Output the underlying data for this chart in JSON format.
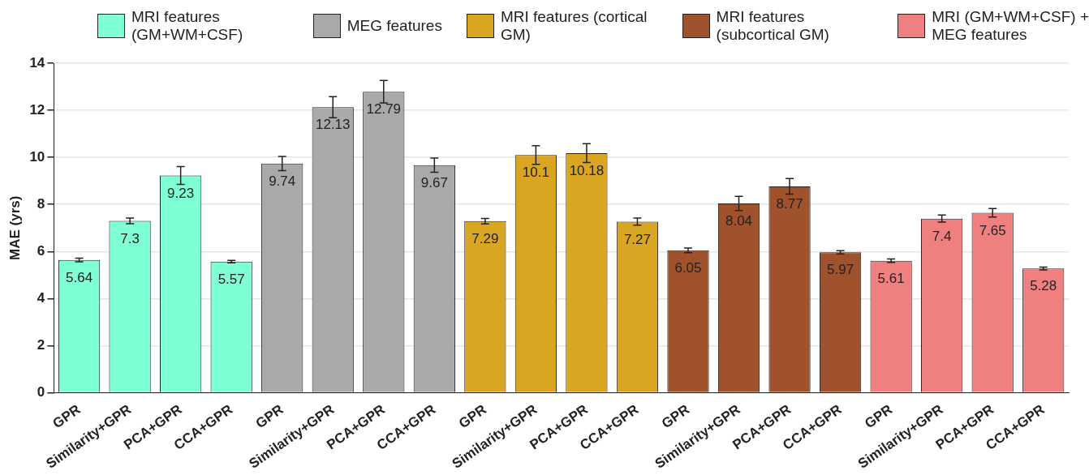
{
  "chart_data": {
    "type": "bar",
    "ylabel": "MAE (yrs)",
    "categories": [
      "GPR",
      "Similarity+GPR",
      "PCA+GPR",
      "CCA+GPR",
      "GPR",
      "Similarity+GPR",
      "PCA+GPR",
      "CCA+GPR",
      "GPR",
      "Similarity+GPR",
      "PCA+GPR",
      "CCA+GPR",
      "GPR",
      "Similarity+GPR",
      "PCA+GPR",
      "CCA+GPR",
      "GPR",
      "Similarity+GPR",
      "PCA+GPR",
      "CCA+GPR"
    ],
    "series": [
      {
        "name": "MRI features (GM+WM+CSF)",
        "color": "#7fffd4",
        "values": [
          5.64,
          7.3,
          9.23,
          5.57,
          null,
          null,
          null,
          null,
          null,
          null,
          null,
          null,
          null,
          null,
          null,
          null,
          null,
          null,
          null,
          null
        ],
        "errors": [
          0.08,
          0.12,
          0.38,
          0.05,
          null,
          null,
          null,
          null,
          null,
          null,
          null,
          null,
          null,
          null,
          null,
          null,
          null,
          null,
          null,
          null
        ]
      },
      {
        "name": "MEG features",
        "color": "#a9a9a9",
        "values": [
          null,
          null,
          null,
          null,
          9.74,
          12.13,
          12.79,
          9.67,
          null,
          null,
          null,
          null,
          null,
          null,
          null,
          null,
          null,
          null,
          null,
          null
        ],
        "errors": [
          null,
          null,
          null,
          null,
          0.3,
          0.45,
          0.48,
          0.3,
          null,
          null,
          null,
          null,
          null,
          null,
          null,
          null,
          null,
          null,
          null,
          null
        ]
      },
      {
        "name": "MRI features (cortical GM)",
        "color": "#daa520",
        "values": [
          null,
          null,
          null,
          null,
          null,
          null,
          null,
          null,
          7.29,
          10.1,
          10.18,
          7.27,
          null,
          null,
          null,
          null,
          null,
          null,
          null,
          null
        ],
        "errors": [
          null,
          null,
          null,
          null,
          null,
          null,
          null,
          null,
          0.12,
          0.4,
          0.4,
          0.15,
          null,
          null,
          null,
          null,
          null,
          null,
          null,
          null
        ]
      },
      {
        "name": "MRI features (subcortical GM)",
        "color": "#a0522d",
        "values": [
          null,
          null,
          null,
          null,
          null,
          null,
          null,
          null,
          null,
          null,
          null,
          null,
          6.05,
          8.04,
          8.77,
          5.97,
          null,
          null,
          null,
          null
        ],
        "errors": [
          null,
          null,
          null,
          null,
          null,
          null,
          null,
          null,
          null,
          null,
          null,
          null,
          0.1,
          0.3,
          0.33,
          0.07,
          null,
          null,
          null,
          null
        ]
      },
      {
        "name": "MRI (GM+WM+CSF) + MEG features",
        "color": "#f08080",
        "values": [
          null,
          null,
          null,
          null,
          null,
          null,
          null,
          null,
          null,
          null,
          null,
          null,
          null,
          null,
          null,
          null,
          5.61,
          7.4,
          7.65,
          5.28
        ],
        "errors": [
          null,
          null,
          null,
          null,
          null,
          null,
          null,
          null,
          null,
          null,
          null,
          null,
          null,
          null,
          null,
          null,
          0.07,
          0.15,
          0.18,
          0.06
        ]
      }
    ],
    "ylim": [
      0,
      14
    ],
    "yticks": [
      0,
      2,
      4,
      6,
      8,
      10,
      12,
      14
    ],
    "grid": "y",
    "legend": "top",
    "data_labels": true
  }
}
